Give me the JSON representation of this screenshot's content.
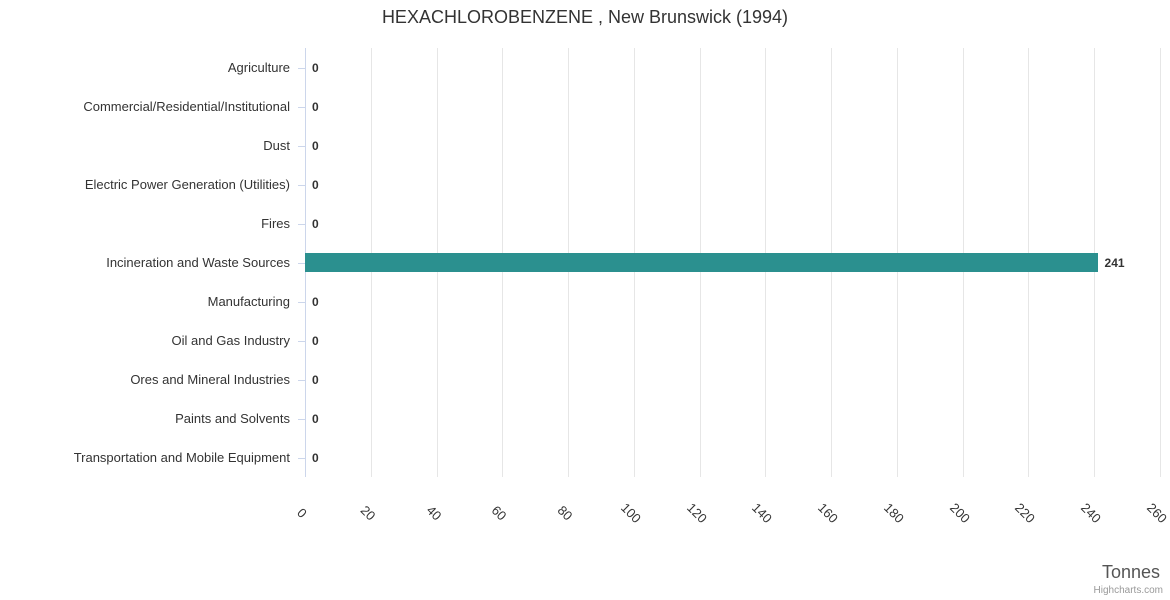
{
  "credit": "Highcharts.com",
  "colors": {
    "bar": "#2b908f",
    "gridline": "#e6e6e6",
    "axis_line": "#ccd6eb",
    "title_text": "#333333",
    "category_text": "#333333",
    "tick_label_text": "#333333",
    "data_label_text": "#333333",
    "axis_title_text": "#555555",
    "credit_text": "#999999",
    "background": "#ffffff"
  },
  "chart_data": {
    "type": "bar",
    "orientation": "horizontal",
    "title": "HEXACHLOROBENZENE , New Brunswick (1994)",
    "categories": [
      "Agriculture",
      "Commercial/Residential/Institutional",
      "Dust",
      "Electric Power Generation (Utilities)",
      "Fires",
      "Incineration and Waste Sources",
      "Manufacturing",
      "Oil and Gas Industry",
      "Ores and Mineral Industries",
      "Paints and Solvents",
      "Transportation and Mobile Equipment"
    ],
    "values": [
      0,
      0,
      0,
      0,
      0,
      241,
      0,
      0,
      0,
      0,
      0
    ],
    "data_labels_shown": true,
    "xlabel": "Tonnes",
    "ylabel": "",
    "xlim": [
      0,
      260
    ],
    "x_ticks": [
      0,
      20,
      40,
      60,
      80,
      100,
      120,
      140,
      160,
      180,
      200,
      220,
      240,
      260
    ],
    "grid": true,
    "legend": false
  }
}
